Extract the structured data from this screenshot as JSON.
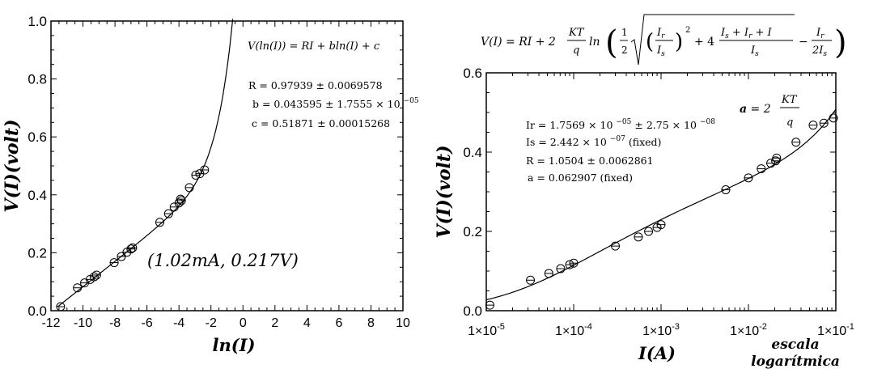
{
  "chart_data": [
    {
      "type": "scatter",
      "xlabel": "ln(I)",
      "ylabel": "V(I)(volt)",
      "xlim": [
        -12,
        10
      ],
      "ylim": [
        0,
        1.0
      ],
      "x_ticks": [
        -12,
        -10,
        -8,
        -6,
        -4,
        -2,
        0,
        2,
        4,
        6,
        8,
        10
      ],
      "x_tick_labels": [
        "-12",
        "-10",
        "-8",
        "-6",
        "-4",
        "-2",
        "0",
        "2",
        "4",
        "6",
        "8",
        "10"
      ],
      "y_ticks": [
        0,
        0.2,
        0.4,
        0.6,
        0.8,
        1.0
      ],
      "y_tick_labels": [
        "0.0",
        "0.2",
        "0.4",
        "0.6",
        "0.8",
        "1.0"
      ],
      "grid": false,
      "equation": "V(ln(I)) = RI + bln(I) + c",
      "fit_params": [
        "R = 0.97939 ± 0.0069578",
        "b = 0.043595 ± 1.7555 × 10",
        "c = 0.51871 ± 0.00015268"
      ],
      "fit_params_sup": [
        "",
        "−05",
        ""
      ],
      "annotation": "(1.02mA, 0.217V)",
      "fit": {
        "R": 0.97939,
        "b": 0.043595,
        "c": 0.51871
      },
      "points": [
        {
          "x": -11.4,
          "y": 0.014
        },
        {
          "x": -10.35,
          "y": 0.079
        },
        {
          "x": -9.9,
          "y": 0.096
        },
        {
          "x": -9.55,
          "y": 0.108
        },
        {
          "x": -9.3,
          "y": 0.117
        },
        {
          "x": -9.15,
          "y": 0.123
        },
        {
          "x": -8.05,
          "y": 0.166
        },
        {
          "x": -7.6,
          "y": 0.187
        },
        {
          "x": -7.25,
          "y": 0.202
        },
        {
          "x": -7.0,
          "y": 0.213
        },
        {
          "x": -6.9,
          "y": 0.217
        },
        {
          "x": -5.2,
          "y": 0.305
        },
        {
          "x": -4.65,
          "y": 0.335
        },
        {
          "x": -4.3,
          "y": 0.358
        },
        {
          "x": -4.0,
          "y": 0.372
        },
        {
          "x": -3.85,
          "y": 0.38
        },
        {
          "x": -3.9,
          "y": 0.385
        },
        {
          "x": -3.35,
          "y": 0.425
        },
        {
          "x": -2.95,
          "y": 0.468
        },
        {
          "x": -2.7,
          "y": 0.473
        },
        {
          "x": -2.4,
          "y": 0.486
        }
      ]
    },
    {
      "type": "scatter",
      "xlabel": "I(A)",
      "ylabel": "V(I)(volt)",
      "xscale": "log",
      "xlim": [
        1e-05,
        0.1
      ],
      "ylim": [
        0,
        0.6
      ],
      "x_ticks": [
        1e-05,
        0.0001,
        0.001,
        0.01,
        0.1
      ],
      "x_tick_labels": [
        "1×10",
        "1×10",
        "1×10",
        "1×10",
        "1×10"
      ],
      "x_tick_exponents": [
        "-5",
        "-4",
        "-3",
        "-2",
        "-1"
      ],
      "y_ticks": [
        0,
        0.2,
        0.4,
        0.6
      ],
      "y_tick_labels": [
        "0.0",
        "0.2",
        "0.4",
        "0.6"
      ],
      "grid": false,
      "equation": "V(I) = RI + 2(KT/q) ln( ½ √( (Ir/Is)² + 4(Is+Ir+I)/Is ) − Ir/(2Is) )",
      "a_label": "a = 2KT/q",
      "fit_params": [
        "Ir = 1.7569 × 10",
        "Is = 2.442 × 10",
        "R = 1.0504 ± 0.0062861",
        "a = 0.062907 (fixed)"
      ],
      "fit_params_sup": [
        "−05",
        "−07",
        "",
        ""
      ],
      "fit_params_tail": [
        " ± 2.75 × 10",
        " (fixed)",
        "",
        ""
      ],
      "fit_params_tail_sup": [
        "−08",
        "",
        "",
        ""
      ],
      "note_line1": "escala",
      "note_line2": "logarítmica",
      "fit": {
        "Ir": 1.7569e-05,
        "Is": 2.442e-07,
        "R": 1.0504,
        "a": 0.062907
      },
      "points": [
        {
          "x": 1.1e-05,
          "y": 0.014
        },
        {
          "x": 3.2e-05,
          "y": 0.077
        },
        {
          "x": 5.2e-05,
          "y": 0.094
        },
        {
          "x": 7.1e-05,
          "y": 0.106
        },
        {
          "x": 9e-05,
          "y": 0.116
        },
        {
          "x": 0.0001,
          "y": 0.12
        },
        {
          "x": 0.0003,
          "y": 0.163
        },
        {
          "x": 0.00055,
          "y": 0.186
        },
        {
          "x": 0.00072,
          "y": 0.2
        },
        {
          "x": 0.0009,
          "y": 0.21
        },
        {
          "x": 0.001,
          "y": 0.217
        },
        {
          "x": 0.0055,
          "y": 0.305
        },
        {
          "x": 0.01,
          "y": 0.335
        },
        {
          "x": 0.014,
          "y": 0.358
        },
        {
          "x": 0.018,
          "y": 0.372
        },
        {
          "x": 0.0205,
          "y": 0.378
        },
        {
          "x": 0.021,
          "y": 0.385
        },
        {
          "x": 0.035,
          "y": 0.425
        },
        {
          "x": 0.055,
          "y": 0.468
        },
        {
          "x": 0.073,
          "y": 0.473
        },
        {
          "x": 0.094,
          "y": 0.486
        }
      ]
    }
  ]
}
